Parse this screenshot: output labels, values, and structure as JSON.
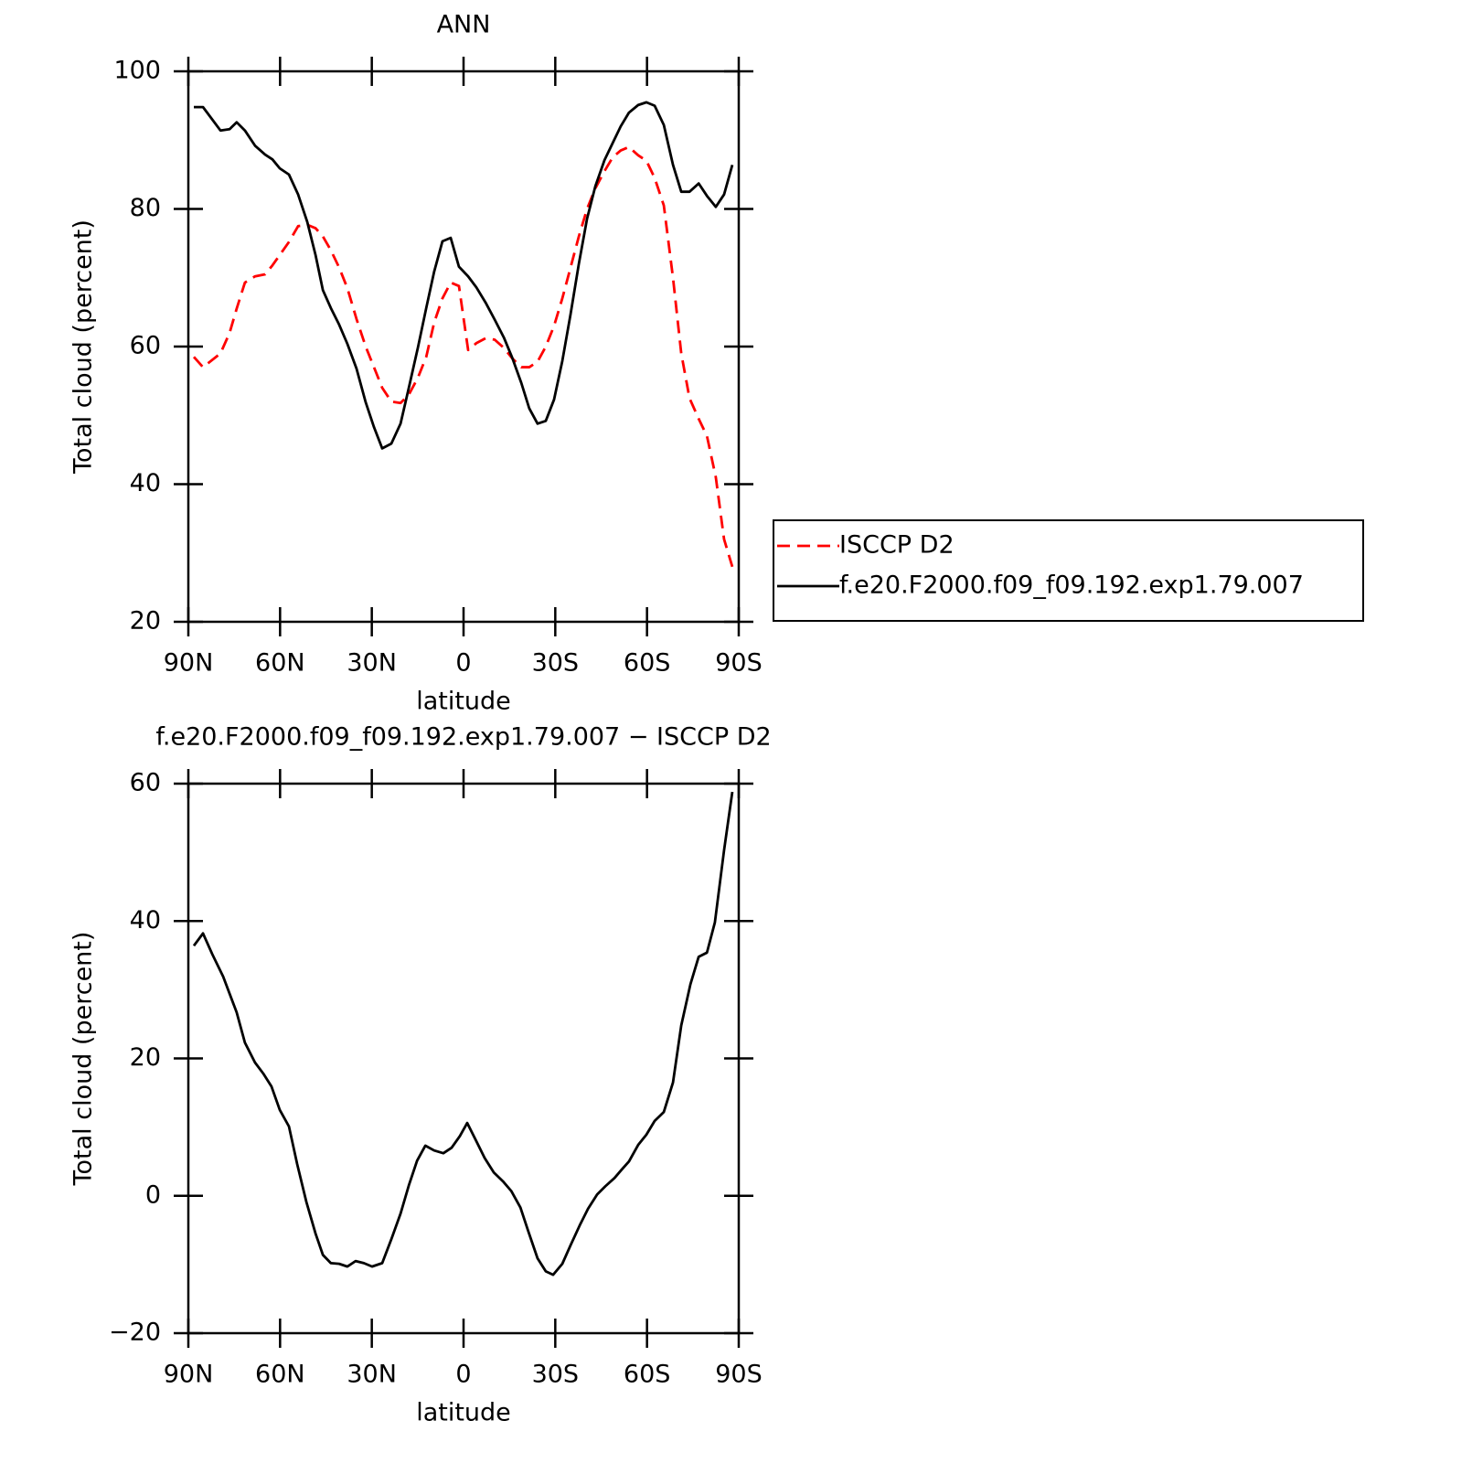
{
  "chart_data": [
    {
      "type": "line",
      "title": "ANN",
      "xlabel": "latitude",
      "ylabel": "Total cloud (percent)",
      "x": [
        88.2,
        85.2,
        79.5,
        76.5,
        74.2,
        71.5,
        68.2,
        64.9,
        62.5,
        60.1,
        57.1,
        54.1,
        51.1,
        48.4,
        46.0,
        43.4,
        40.7,
        38.0,
        35.0,
        32.0,
        29.3,
        26.6,
        23.6,
        20.6,
        17.9,
        14.9,
        12.2,
        9.6,
        6.9,
        4.2,
        1.5,
        -1.5,
        -4.2,
        -7.2,
        -10.2,
        -13.2,
        -15.9,
        -18.9,
        -21.5,
        -24.2,
        -26.9,
        -29.6,
        -32.3,
        -35.0,
        -37.7,
        -40.4,
        -43.1,
        -46.1,
        -48.8,
        -51.4,
        -54.1,
        -57.1,
        -59.8,
        -62.5,
        -65.5,
        -68.5,
        -71.2,
        -73.9,
        -76.9,
        -79.6,
        -82.5,
        -85.2,
        -87.9
      ],
      "series": [
        {
          "name": "ISCCP D2",
          "color": "#ff0000",
          "line_style": "dashed",
          "values": [
            58.5,
            57.0,
            59.0,
            62.0,
            65.5,
            69.3,
            70.2,
            70.5,
            71.8,
            73.3,
            75.2,
            77.5,
            77.7,
            77.2,
            76.0,
            74.0,
            71.5,
            68.5,
            64.0,
            60.0,
            57.0,
            54.0,
            52.0,
            51.8,
            53.0,
            55.5,
            58.5,
            63.5,
            67.0,
            69.3,
            68.8,
            59.5,
            60.5,
            61.2,
            61.0,
            59.8,
            58.3,
            57.0,
            57.0,
            57.8,
            60.0,
            63.0,
            67.0,
            71.5,
            76.0,
            80.0,
            83.0,
            85.5,
            87.5,
            88.5,
            89.0,
            87.8,
            87.0,
            84.5,
            80.5,
            70.0,
            59.0,
            52.5,
            49.5,
            47.0,
            41.0,
            32.0,
            28.0
          ]
        },
        {
          "name": "f.e20.F2000.f09_f09.192.exp1.79.007",
          "color": "#000000",
          "line_style": "solid",
          "values": [
            94.8,
            94.8,
            91.4,
            91.6,
            92.6,
            91.4,
            89.2,
            87.9,
            87.2,
            85.9,
            85.0,
            82.1,
            78.1,
            73.3,
            68.2,
            65.6,
            63.2,
            60.4,
            56.8,
            51.9,
            48.3,
            45.2,
            45.9,
            48.8,
            54.0,
            59.9,
            65.6,
            70.9,
            75.3,
            75.8,
            71.6,
            70.2,
            68.6,
            66.4,
            63.9,
            61.3,
            58.4,
            54.7,
            51.0,
            48.8,
            49.2,
            52.3,
            57.9,
            64.7,
            72.0,
            78.6,
            83.3,
            87.1,
            89.6,
            92.0,
            94.0,
            95.1,
            95.5,
            95.0,
            92.2,
            86.4,
            82.5,
            82.5,
            83.7,
            81.9,
            80.3,
            82.1,
            86.4
          ]
        }
      ],
      "xlim": [
        90,
        -90
      ],
      "xticks": [
        {
          "value": 90,
          "label": "90N"
        },
        {
          "value": 60,
          "label": "60N"
        },
        {
          "value": 30,
          "label": "30N"
        },
        0,
        {
          "value": -30,
          "label": "30S"
        },
        {
          "value": -60,
          "label": "60S"
        },
        {
          "value": -90,
          "label": "90S"
        }
      ],
      "ylim": [
        20,
        100
      ],
      "yticks": [
        20,
        40,
        60,
        80,
        100
      ],
      "legend": "right",
      "grid": false
    },
    {
      "type": "line",
      "title": "f.e20.F2000.f09_f09.192.exp1.79.007 − ISCCP D2",
      "xlabel": "latitude",
      "ylabel": "Total cloud (percent)",
      "x": [
        88.2,
        85.2,
        82.2,
        78.6,
        74.2,
        71.5,
        68.2,
        65.5,
        62.8,
        60.1,
        57.1,
        54.4,
        51.4,
        48.4,
        46.0,
        43.4,
        40.7,
        38.0,
        35.3,
        32.6,
        29.9,
        26.6,
        23.6,
        20.6,
        17.9,
        15.2,
        12.5,
        9.6,
        6.6,
        3.9,
        1.2,
        -1.2,
        -3.9,
        -6.9,
        -9.9,
        -12.9,
        -15.6,
        -18.6,
        -21.2,
        -24.2,
        -26.9,
        -29.3,
        -32.3,
        -35.0,
        -38.0,
        -40.7,
        -43.7,
        -46.4,
        -49.4,
        -51.7,
        -54.1,
        -57.1,
        -59.8,
        -62.5,
        -65.5,
        -68.5,
        -71.2,
        -74.2,
        -76.9,
        -79.6,
        -82.2,
        -85.2,
        -87.9
      ],
      "series": [
        {
          "color": "#000000",
          "line_style": "solid",
          "values": [
            36.4,
            38.2,
            35.2,
            31.9,
            26.7,
            22.3,
            19.4,
            17.8,
            15.9,
            12.5,
            10.1,
            4.6,
            -0.9,
            -5.5,
            -8.6,
            -9.8,
            -9.9,
            -10.3,
            -9.5,
            -9.8,
            -10.3,
            -9.8,
            -6.3,
            -2.6,
            1.5,
            5.1,
            7.3,
            6.6,
            6.2,
            7.0,
            8.7,
            10.6,
            8.2,
            5.5,
            3.4,
            2.1,
            0.7,
            -1.7,
            -5.2,
            -9.1,
            -11.0,
            -11.5,
            -9.9,
            -7.2,
            -4.3,
            -1.9,
            0.2,
            1.4,
            2.6,
            3.8,
            5.0,
            7.4,
            8.9,
            10.9,
            12.2,
            16.5,
            24.8,
            30.8,
            34.8,
            35.4,
            39.8,
            50.3,
            58.8
          ]
        }
      ],
      "xlim": [
        90,
        -90
      ],
      "xticks": [
        {
          "value": 90,
          "label": "90N"
        },
        {
          "value": 60,
          "label": "60N"
        },
        {
          "value": 30,
          "label": "30N"
        },
        0,
        {
          "value": -30,
          "label": "30S"
        },
        {
          "value": -60,
          "label": "60S"
        },
        {
          "value": -90,
          "label": "90S"
        }
      ],
      "ylim": [
        -20,
        60
      ],
      "yticks": [
        {
          "value": -20,
          "label": "−20"
        },
        0,
        20,
        40,
        60
      ],
      "grid": false
    }
  ]
}
